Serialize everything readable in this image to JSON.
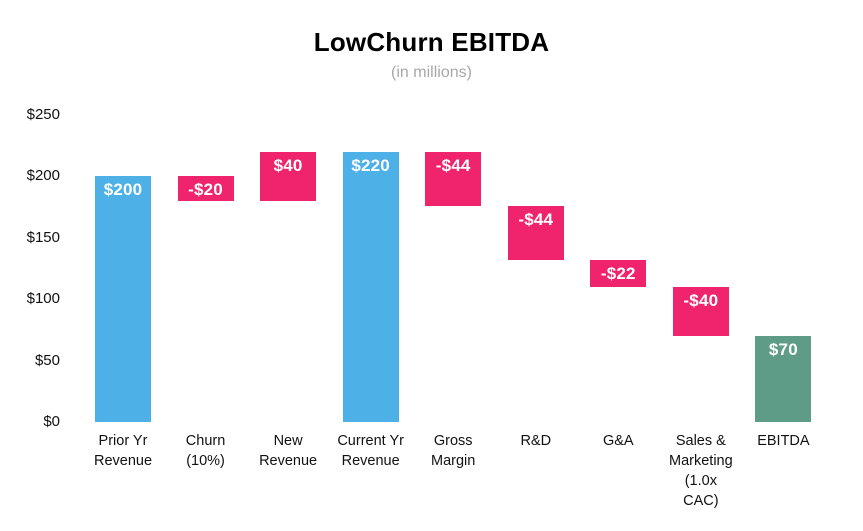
{
  "chart_data": {
    "type": "bar",
    "subtype": "waterfall",
    "title": "LowChurn EBITDA",
    "subtitle": "(in millions)",
    "xlabel": "",
    "ylabel": "",
    "ylim": [
      0,
      250
    ],
    "grid": false,
    "legend": false,
    "y_ticks": [
      {
        "value": 0,
        "label": "$0"
      },
      {
        "value": 50,
        "label": "$50"
      },
      {
        "value": 100,
        "label": "$100"
      },
      {
        "value": 150,
        "label": "$150"
      },
      {
        "value": 200,
        "label": "$200"
      },
      {
        "value": 250,
        "label": "$250"
      }
    ],
    "palette": {
      "revenue_total_blue": "#4DB1E8",
      "delta_pink": "#F0246C",
      "ebitda_green": "#5E9C87",
      "value_label_text": "#FFFFFF",
      "title_text": "#000000",
      "subtitle_text": "#A8A8A8",
      "axis_text": "#111111",
      "background": "#FFFFFF"
    },
    "bars": [
      {
        "category": "Prior Yr Revenue",
        "category_lines": [
          "Prior Yr",
          "Revenue"
        ],
        "value": 200,
        "from": 0,
        "to": 200,
        "label": "$200",
        "color_key": "revenue_total_blue",
        "role": "total"
      },
      {
        "category": "Churn (10%)",
        "category_lines": [
          "Churn",
          "(10%)"
        ],
        "value": -20,
        "from": 180,
        "to": 200,
        "label": "-$20",
        "color_key": "delta_pink",
        "role": "decrease"
      },
      {
        "category": "New Revenue",
        "category_lines": [
          "New",
          "Revenue"
        ],
        "value": 40,
        "from": 180,
        "to": 220,
        "label": "$40",
        "color_key": "delta_pink",
        "role": "increase"
      },
      {
        "category": "Current Yr Revenue",
        "category_lines": [
          "Current Yr",
          "Revenue"
        ],
        "value": 220,
        "from": 0,
        "to": 220,
        "label": "$220",
        "color_key": "revenue_total_blue",
        "role": "total"
      },
      {
        "category": "Gross Margin",
        "category_lines": [
          "Gross",
          "Margin"
        ],
        "value": -44,
        "from": 176,
        "to": 220,
        "label": "-$44",
        "color_key": "delta_pink",
        "role": "decrease"
      },
      {
        "category": "R&D",
        "category_lines": [
          "R&D"
        ],
        "value": -44,
        "from": 132,
        "to": 176,
        "label": "-$44",
        "color_key": "delta_pink",
        "role": "decrease"
      },
      {
        "category": "G&A",
        "category_lines": [
          "G&A"
        ],
        "value": -22,
        "from": 110,
        "to": 132,
        "label": "-$22",
        "color_key": "delta_pink",
        "role": "decrease"
      },
      {
        "category": "Sales & Marketing (1.0x CAC)",
        "category_lines": [
          "Sales &",
          "Marketing",
          "(1.0x",
          "CAC)"
        ],
        "value": -40,
        "from": 70,
        "to": 110,
        "label": "-$40",
        "color_key": "delta_pink",
        "role": "decrease"
      },
      {
        "category": "EBITDA",
        "category_lines": [
          "EBITDA"
        ],
        "value": 70,
        "from": 0,
        "to": 70,
        "label": "$70",
        "color_key": "ebitda_green",
        "role": "total"
      }
    ]
  }
}
